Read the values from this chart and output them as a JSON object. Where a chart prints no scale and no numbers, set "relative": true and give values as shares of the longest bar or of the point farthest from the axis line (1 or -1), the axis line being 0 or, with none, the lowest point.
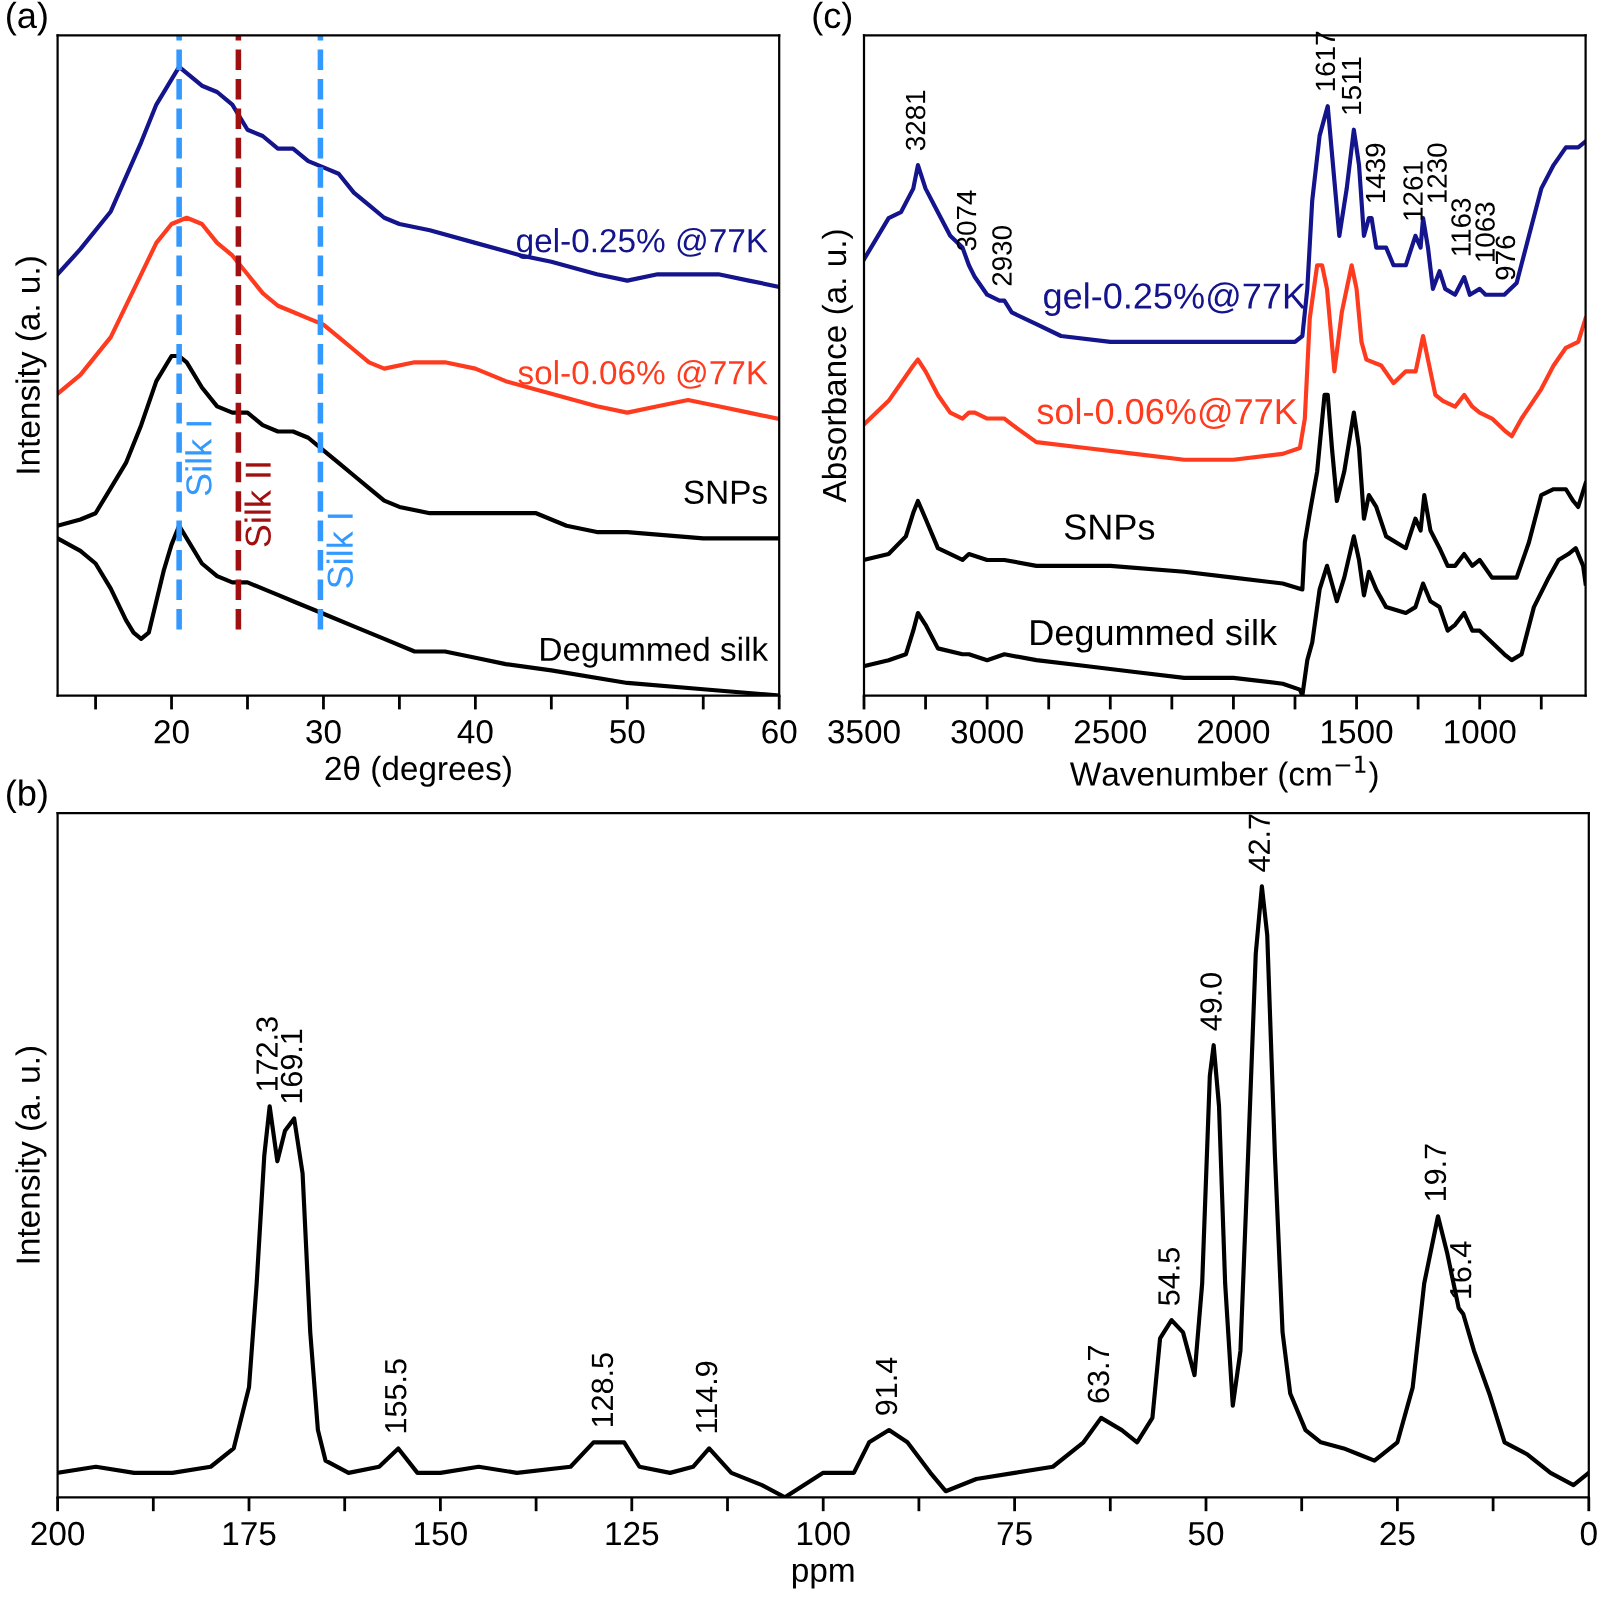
{
  "chart_data": [
    {
      "type": "line",
      "relative": true,
      "xlabel": "2θ (degrees)",
      "ylabel": "Intensity (a. u.)",
      "annotations": [
        "(a)"
      ],
      "tick_labels": "x",
      "grid": false,
      "legend": false,
      "line_style": "solid",
      "marker": "none",
      "xlim": [
        12.5,
        60
      ],
      "xticks": [
        {
          "value": 15,
          "label": null
        },
        20,
        {
          "value": 25,
          "label": null
        },
        30,
        {
          "value": 35,
          "label": null
        },
        40,
        {
          "value": 45,
          "label": null
        },
        50,
        {
          "value": 55,
          "label": null
        },
        60
      ],
      "ref_lines": [
        {
          "axis": "x",
          "value": 20.5,
          "label": "Silk I",
          "color": "#3399ff",
          "line_style": "dashed"
        },
        {
          "axis": "x",
          "value": 24.4,
          "label": "Silk II",
          "color": "#a01010",
          "line_style": "dashed"
        },
        {
          "axis": "x",
          "value": 29.8,
          "label": "Silk I",
          "color": "#3399ff",
          "line_style": "dashed"
        }
      ],
      "series": [
        {
          "name": "gel-0.25% @77K",
          "color": "#14148c",
          "x": [
            12.5,
            14,
            16,
            18,
            19,
            20,
            20.5,
            21,
            22,
            23,
            24,
            25,
            26,
            27,
            28,
            29,
            30,
            31,
            32,
            33,
            34,
            35,
            37,
            40,
            43,
            45,
            48,
            50,
            52,
            54,
            56,
            58,
            60
          ],
          "values": [
            0.67,
            0.71,
            0.77,
            0.88,
            0.94,
            0.98,
            1.0,
            0.99,
            0.97,
            0.96,
            0.94,
            0.9,
            0.89,
            0.87,
            0.87,
            0.85,
            0.84,
            0.83,
            0.8,
            0.78,
            0.76,
            0.75,
            0.74,
            0.72,
            0.7,
            0.69,
            0.67,
            0.66,
            0.67,
            0.67,
            0.67,
            0.66,
            0.65
          ]
        },
        {
          "name": "sol-0.06% @77K",
          "color": "#ff3b1f",
          "x": [
            12.5,
            14,
            16,
            18,
            19,
            20,
            21,
            22,
            23,
            24,
            25,
            26,
            27,
            28,
            29,
            30,
            31,
            32,
            33,
            34,
            36,
            38,
            40,
            42,
            45,
            48,
            50,
            52,
            54,
            56,
            58,
            60
          ],
          "values": [
            0.48,
            0.51,
            0.57,
            0.67,
            0.72,
            0.75,
            0.76,
            0.75,
            0.72,
            0.7,
            0.67,
            0.64,
            0.62,
            0.61,
            0.6,
            0.59,
            0.57,
            0.55,
            0.53,
            0.52,
            0.53,
            0.53,
            0.52,
            0.5,
            0.48,
            0.46,
            0.45,
            0.46,
            0.47,
            0.46,
            0.45,
            0.44
          ]
        },
        {
          "name": "SNPs",
          "color": "#000000",
          "x": [
            12.5,
            14,
            15,
            16,
            17,
            18,
            19,
            20,
            20.5,
            21,
            22,
            23,
            24,
            25,
            26,
            27,
            28,
            29,
            30,
            31,
            32,
            33,
            34,
            35,
            37,
            40,
            42,
            44,
            46,
            48,
            50,
            55,
            60
          ],
          "values": [
            0.27,
            0.28,
            0.29,
            0.33,
            0.37,
            0.43,
            0.5,
            0.54,
            0.54,
            0.53,
            0.49,
            0.46,
            0.45,
            0.45,
            0.43,
            0.42,
            0.42,
            0.41,
            0.39,
            0.37,
            0.35,
            0.33,
            0.31,
            0.3,
            0.29,
            0.29,
            0.29,
            0.29,
            0.27,
            0.26,
            0.26,
            0.25,
            0.25
          ]
        },
        {
          "name": "Degummed silk",
          "color": "#000000",
          "x": [
            12.5,
            14,
            15,
            16,
            17,
            17.5,
            18,
            18.5,
            19,
            19.5,
            20,
            20.5,
            21,
            22,
            23,
            24,
            25,
            26,
            27,
            28,
            29,
            30,
            32,
            34,
            36,
            38,
            40,
            42,
            45,
            50,
            55,
            60
          ],
          "values": [
            0.25,
            0.23,
            0.21,
            0.17,
            0.12,
            0.1,
            0.09,
            0.1,
            0.15,
            0.2,
            0.24,
            0.27,
            0.25,
            0.21,
            0.19,
            0.18,
            0.18,
            0.17,
            0.16,
            0.15,
            0.14,
            0.13,
            0.11,
            0.09,
            0.07,
            0.07,
            0.06,
            0.05,
            0.04,
            0.02,
            0.01,
            0.0
          ]
        }
      ]
    },
    {
      "type": "line",
      "relative": true,
      "xlabel": "Wavenumber (cm$^{−1}$)",
      "ylabel": "Absorbance (a. u.)",
      "tick_labels": "x",
      "grid": false,
      "legend": false,
      "line_style": "solid",
      "marker": "none",
      "xlim": [
        3500,
        570
      ],
      "xticks": [
        3500,
        {
          "value": 3250,
          "label": null
        },
        3000,
        {
          "value": 2750,
          "label": null
        },
        2500,
        {
          "value": 2250,
          "label": null
        },
        2000,
        {
          "value": 1750,
          "label": null
        },
        1500,
        {
          "value": 1250,
          "label": null
        },
        1000,
        {
          "value": 750,
          "label": null
        }
      ],
      "annotations": [
        "(c)",
        {
          "text": "3281",
          "x": 3281,
          "y": 0.9
        },
        {
          "text": "3074",
          "x": 3074,
          "y": 0.73
        },
        {
          "text": "2930",
          "x": 2930,
          "y": 0.67
        },
        {
          "text": "1617",
          "x": 1617,
          "y": 1.0
        },
        {
          "text": "1511",
          "x": 1511,
          "y": 0.96
        },
        {
          "text": "1439",
          "x": 1439,
          "y": 0.81
        },
        {
          "text": "1261",
          "x": 1261,
          "y": 0.78
        },
        {
          "text": "1230",
          "x": 1230,
          "y": 0.81
        },
        {
          "text": "1163",
          "x": 1163,
          "y": 0.72
        },
        {
          "text": "1063",
          "x": 1063,
          "y": 0.71
        },
        {
          "text": "976",
          "x": 976,
          "y": 0.68
        }
      ],
      "series": [
        {
          "name": "gel-0.25%@77K",
          "color": "#14148c",
          "x": [
            3500,
            3400,
            3350,
            3300,
            3281,
            3250,
            3200,
            3150,
            3100,
            3074,
            3050,
            3000,
            2950,
            2930,
            2900,
            2800,
            2700,
            2500,
            2300,
            2100,
            1900,
            1750,
            1720,
            1700,
            1680,
            1650,
            1617,
            1600,
            1570,
            1540,
            1511,
            1490,
            1470,
            1450,
            1439,
            1420,
            1380,
            1350,
            1300,
            1261,
            1240,
            1230,
            1210,
            1190,
            1163,
            1140,
            1100,
            1063,
            1040,
            1000,
            976,
            950,
            900,
            850,
            800,
            750,
            700,
            650,
            600,
            570
          ],
          "values": [
            0.74,
            0.81,
            0.82,
            0.86,
            0.9,
            0.86,
            0.82,
            0.78,
            0.76,
            0.73,
            0.71,
            0.68,
            0.67,
            0.67,
            0.65,
            0.63,
            0.61,
            0.6,
            0.6,
            0.6,
            0.6,
            0.6,
            0.61,
            0.69,
            0.84,
            0.95,
            1.0,
            0.92,
            0.78,
            0.86,
            0.96,
            0.9,
            0.78,
            0.81,
            0.81,
            0.76,
            0.76,
            0.73,
            0.73,
            0.78,
            0.76,
            0.81,
            0.76,
            0.69,
            0.72,
            0.69,
            0.68,
            0.71,
            0.68,
            0.69,
            0.68,
            0.68,
            0.68,
            0.7,
            0.78,
            0.86,
            0.9,
            0.93,
            0.93,
            0.94
          ]
        },
        {
          "name": "sol-0.06%@77K",
          "color": "#ff3b1f",
          "x": [
            3500,
            3400,
            3300,
            3281,
            3250,
            3200,
            3150,
            3100,
            3074,
            3050,
            3000,
            2930,
            2900,
            2800,
            2600,
            2400,
            2200,
            2000,
            1800,
            1730,
            1710,
            1690,
            1660,
            1640,
            1620,
            1590,
            1560,
            1520,
            1500,
            1480,
            1460,
            1400,
            1350,
            1300,
            1260,
            1230,
            1210,
            1180,
            1150,
            1100,
            1063,
            1030,
            1000,
            950,
            900,
            870,
            830,
            750,
            700,
            650,
            600,
            570
          ],
          "values": [
            0.46,
            0.5,
            0.56,
            0.57,
            0.55,
            0.51,
            0.48,
            0.47,
            0.48,
            0.48,
            0.47,
            0.47,
            0.46,
            0.43,
            0.42,
            0.41,
            0.4,
            0.4,
            0.41,
            0.42,
            0.47,
            0.64,
            0.73,
            0.73,
            0.69,
            0.55,
            0.65,
            0.73,
            0.69,
            0.6,
            0.57,
            0.56,
            0.53,
            0.55,
            0.55,
            0.61,
            0.57,
            0.51,
            0.5,
            0.49,
            0.51,
            0.49,
            0.48,
            0.47,
            0.45,
            0.44,
            0.47,
            0.52,
            0.56,
            0.59,
            0.6,
            0.64
          ]
        },
        {
          "name": "SNPs",
          "color": "#000000",
          "x": [
            3500,
            3400,
            3330,
            3300,
            3281,
            3250,
            3200,
            3100,
            3074,
            3000,
            2930,
            2800,
            2500,
            2200,
            2000,
            1800,
            1720,
            1710,
            1690,
            1660,
            1630,
            1617,
            1600,
            1580,
            1550,
            1511,
            1490,
            1470,
            1450,
            1420,
            1380,
            1300,
            1261,
            1240,
            1225,
            1200,
            1163,
            1130,
            1100,
            1063,
            1030,
            1000,
            950,
            900,
            850,
            800,
            750,
            700,
            650,
            620,
            600,
            570
          ],
          "values": [
            0.23,
            0.24,
            0.27,
            0.31,
            0.33,
            0.3,
            0.25,
            0.23,
            0.24,
            0.23,
            0.23,
            0.22,
            0.22,
            0.21,
            0.2,
            0.19,
            0.18,
            0.26,
            0.31,
            0.38,
            0.51,
            0.51,
            0.42,
            0.33,
            0.38,
            0.48,
            0.42,
            0.3,
            0.34,
            0.32,
            0.27,
            0.25,
            0.3,
            0.28,
            0.34,
            0.28,
            0.25,
            0.22,
            0.22,
            0.24,
            0.22,
            0.23,
            0.2,
            0.2,
            0.2,
            0.26,
            0.34,
            0.35,
            0.35,
            0.33,
            0.32,
            0.36
          ]
        },
        {
          "name": "Degummed silk",
          "color": "#000000",
          "x": [
            3500,
            3400,
            3330,
            3300,
            3281,
            3250,
            3200,
            3100,
            3074,
            3000,
            2930,
            2800,
            2600,
            2400,
            2200,
            2000,
            1800,
            1730,
            1720,
            1700,
            1680,
            1650,
            1620,
            1600,
            1580,
            1550,
            1511,
            1490,
            1470,
            1450,
            1420,
            1380,
            1300,
            1261,
            1230,
            1200,
            1163,
            1130,
            1100,
            1063,
            1030,
            1000,
            950,
            900,
            870,
            830,
            780,
            720,
            680,
            640,
            610,
            580,
            570
          ],
          "values": [
            0.05,
            0.06,
            0.07,
            0.11,
            0.14,
            0.12,
            0.08,
            0.07,
            0.07,
            0.06,
            0.07,
            0.06,
            0.05,
            0.04,
            0.03,
            0.03,
            0.02,
            0.01,
            0.0,
            0.06,
            0.09,
            0.18,
            0.22,
            0.19,
            0.16,
            0.2,
            0.27,
            0.23,
            0.17,
            0.21,
            0.18,
            0.15,
            0.14,
            0.15,
            0.19,
            0.16,
            0.15,
            0.11,
            0.12,
            0.14,
            0.11,
            0.11,
            0.09,
            0.07,
            0.06,
            0.07,
            0.15,
            0.2,
            0.23,
            0.24,
            0.25,
            0.22,
            0.19
          ]
        }
      ]
    },
    {
      "type": "line",
      "relative": true,
      "xlabel": "ppm",
      "ylabel": "Intensity (a. u.)",
      "tick_labels": "x",
      "grid": false,
      "legend": false,
      "line_style": "solid",
      "marker": "none",
      "xlim": [
        200,
        0
      ],
      "xticks": [
        200,
        {
          "value": 187.5,
          "label": null
        },
        175,
        {
          "value": 162.5,
          "label": null
        },
        150,
        {
          "value": 137.5,
          "label": null
        },
        125,
        {
          "value": 112.5,
          "label": null
        },
        100,
        {
          "value": 87.5,
          "label": null
        },
        75,
        {
          "value": 62.5,
          "label": null
        },
        50,
        {
          "value": 37.5,
          "label": null
        },
        25,
        {
          "value": 12.5,
          "label": null
        },
        0
      ],
      "annotations": [
        "(b)",
        {
          "text": "172.3",
          "x": 172.3,
          "y": 0.64
        },
        {
          "text": "169.1",
          "x": 169.1,
          "y": 0.62
        },
        {
          "text": "155.5",
          "x": 155.5,
          "y": 0.08
        },
        {
          "text": "128.5",
          "x": 128.5,
          "y": 0.09
        },
        {
          "text": "114.9",
          "x": 114.9,
          "y": 0.08
        },
        {
          "text": "91.4",
          "x": 91.4,
          "y": 0.11
        },
        {
          "text": "63.7",
          "x": 63.7,
          "y": 0.13
        },
        {
          "text": "54.5",
          "x": 54.5,
          "y": 0.29
        },
        {
          "text": "49.0",
          "x": 49.0,
          "y": 0.74
        },
        {
          "text": "42.7",
          "x": 42.7,
          "y": 1.0
        },
        {
          "text": "19.7",
          "x": 19.7,
          "y": 0.46
        },
        {
          "text": "16.4",
          "x": 16.4,
          "y": 0.3
        }
      ],
      "series": [
        {
          "color": "#000000",
          "x": [
            200,
            195,
            190,
            185,
            180,
            177,
            175,
            174,
            173,
            172.3,
            171.3,
            170.3,
            169.1,
            168,
            167,
            166,
            165,
            162,
            158,
            155.5,
            153,
            150,
            145,
            140,
            133,
            130,
            128.5,
            126,
            124,
            120,
            117,
            114.9,
            112,
            108,
            105,
            100,
            96,
            94,
            91.4,
            89,
            86,
            84,
            80,
            75,
            70,
            66,
            63.7,
            61,
            59,
            57,
            56,
            54.5,
            53,
            51.5,
            50.5,
            49.5,
            49,
            48.3,
            47.5,
            46.5,
            45.5,
            44.5,
            43.5,
            42.7,
            42,
            41,
            40,
            39,
            37,
            35,
            32,
            30,
            28,
            27,
            25,
            23,
            21.5,
            19.7,
            18.5,
            17,
            16.4,
            15,
            13,
            11,
            8,
            5,
            2,
            0
          ],
          "values": [
            0.04,
            0.05,
            0.04,
            0.04,
            0.05,
            0.08,
            0.18,
            0.35,
            0.56,
            0.64,
            0.55,
            0.6,
            0.62,
            0.53,
            0.27,
            0.11,
            0.06,
            0.04,
            0.05,
            0.08,
            0.04,
            0.04,
            0.05,
            0.04,
            0.05,
            0.09,
            0.09,
            0.09,
            0.05,
            0.04,
            0.05,
            0.08,
            0.04,
            0.02,
            0.0,
            0.04,
            0.04,
            0.09,
            0.11,
            0.09,
            0.04,
            0.01,
            0.03,
            0.04,
            0.05,
            0.09,
            0.13,
            0.11,
            0.09,
            0.13,
            0.26,
            0.29,
            0.27,
            0.2,
            0.35,
            0.69,
            0.74,
            0.64,
            0.35,
            0.15,
            0.24,
            0.56,
            0.89,
            1.0,
            0.92,
            0.56,
            0.27,
            0.17,
            0.11,
            0.09,
            0.08,
            0.07,
            0.06,
            0.07,
            0.09,
            0.18,
            0.35,
            0.46,
            0.4,
            0.31,
            0.3,
            0.24,
            0.17,
            0.09,
            0.07,
            0.04,
            0.02,
            0.04
          ]
        }
      ]
    }
  ]
}
